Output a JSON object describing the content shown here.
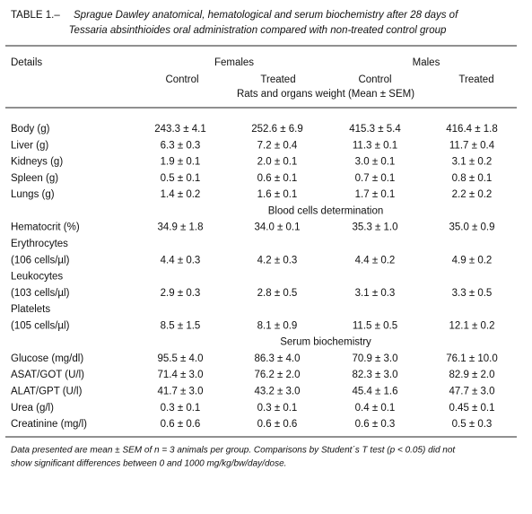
{
  "title": {
    "label": "TABLE 1.–",
    "lines": [
      "Sprague Dawley anatomical, hematological and serum biochemistry after 28 days of",
      "Tessaria absinthioides oral administration compared with non-treated control group"
    ]
  },
  "header": {
    "details": "Details",
    "groups": [
      "Females",
      "Males"
    ],
    "columns": [
      "Control",
      "Treated",
      "Control",
      "Treated"
    ],
    "section": "Rats and organs weight (Mean ± SEM)"
  },
  "rows": [
    {
      "label": "Body (g)",
      "cells": [
        "243.3 ± 4.1",
        "252.6 ± 6.9",
        "415.3 ± 5.4",
        "416.4 ± 1.8"
      ]
    },
    {
      "label": "Liver (g)",
      "cells": [
        "6.3 ± 0.3",
        "7.2 ± 0.4",
        "11.3 ± 0.1",
        "11.7 ± 0.4"
      ]
    },
    {
      "label": "Kidneys (g)",
      "cells": [
        "1.9 ± 0.1",
        "2.0 ± 0.1",
        "3.0 ± 0.1",
        "3.1 ± 0.2"
      ]
    },
    {
      "label": "Spleen (g)",
      "cells": [
        "0.5 ± 0.1",
        "0.6 ± 0.1",
        "0.7 ± 0.1",
        "0.8 ± 0.1"
      ]
    },
    {
      "label": "Lungs (g)",
      "cells": [
        "1.4 ± 0.2",
        "1.6 ± 0.1",
        "1.7 ± 0.1",
        "2.2 ± 0.2"
      ]
    },
    {
      "section": "Blood cells determination"
    },
    {
      "label": "Hematocrit (%)",
      "cells": [
        "34.9 ± 1.8",
        "34.0 ± 0.1",
        "35.3 ± 1.0",
        "35.0 ± 0.9"
      ]
    },
    {
      "label": "Erythrocytes"
    },
    {
      "label": "(106 cells/µl)",
      "cells": [
        "4.4 ± 0.3",
        "4.2 ± 0.3",
        "4.4 ± 0.2",
        "4.9 ± 0.2"
      ]
    },
    {
      "label": "Leukocytes"
    },
    {
      "label": "(103 cells/µl)",
      "cells": [
        "2.9 ± 0.3",
        "2.8 ± 0.5",
        "3.1 ± 0.3",
        "3.3 ± 0.5"
      ]
    },
    {
      "label": "Platelets"
    },
    {
      "label": "(105 cells/µl)",
      "cells": [
        "8.5 ± 1.5",
        "8.1 ± 0.9",
        "11.5 ± 0.5",
        "12.1 ± 0.2"
      ]
    },
    {
      "section": "Serum biochemistry"
    },
    {
      "label": "Glucose (mg/dl)",
      "cells": [
        "95.5 ± 4.0",
        "86.3 ± 4.0",
        "70.9 ± 3.0",
        "76.1 ± 10.0"
      ]
    },
    {
      "label": "ASAT/GOT (U/l)",
      "cells": [
        "71.4 ± 3.0",
        "76.2 ± 2.0",
        "82.3 ± 3.0",
        "82.9 ± 2.0"
      ]
    },
    {
      "label": "ALAT/GPT (U/l)",
      "cells": [
        "41.7 ± 3.0",
        "43.2 ± 3.0",
        "45.4 ± 1.6",
        "47.7 ± 3.0"
      ]
    },
    {
      "label": "Urea (g/l)",
      "cells": [
        "0.3 ± 0.1",
        "0.3 ± 0.1",
        "0.4 ± 0.1",
        "0.45 ± 0.1"
      ]
    },
    {
      "label": "Creatinine (mg/l)",
      "cells": [
        "0.6 ± 0.6",
        "0.6 ± 0.6",
        "0.6 ± 0.3",
        "0.5 ± 0.3"
      ]
    }
  ],
  "footnote": [
    "Data presented are mean ± SEM of n = 3 animals per group. Comparisons by Student´s T test (p < 0.05) did not",
    "show significant differences between 0 and 1000 mg/kg/bw/day/dose."
  ]
}
